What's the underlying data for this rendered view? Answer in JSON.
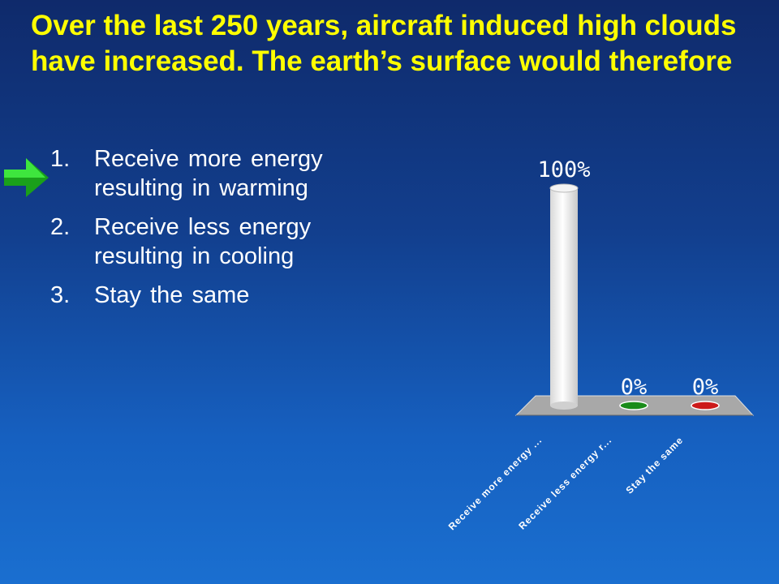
{
  "slide": {
    "title": "Over the last 250 years, aircraft induced high clouds have increased.  The earth’s surface would therefore",
    "answers": [
      {
        "number": "1.",
        "text": "Receive more energy resulting in warming"
      },
      {
        "number": "2.",
        "text": "Receive less energy resulting in cooling"
      },
      {
        "number": "3.",
        "text": "Stay the same"
      }
    ],
    "indicator_icon": "green-arrow-right-icon",
    "colors": {
      "title": "#ffff00",
      "answer_text": "#ffffff",
      "arrow": "#22cc22"
    }
  },
  "chart_data": {
    "type": "bar",
    "categories": [
      "Receive more energy ...",
      "Receive less energy r...",
      "Stay the same"
    ],
    "values": [
      100,
      0,
      0
    ],
    "value_labels": [
      "100%",
      "0%",
      "0%"
    ],
    "ylim": [
      0,
      100
    ],
    "grid": false,
    "legend": "none",
    "colors": [
      "#ffffff",
      "#1a8c1a",
      "#cc1a1a"
    ]
  }
}
